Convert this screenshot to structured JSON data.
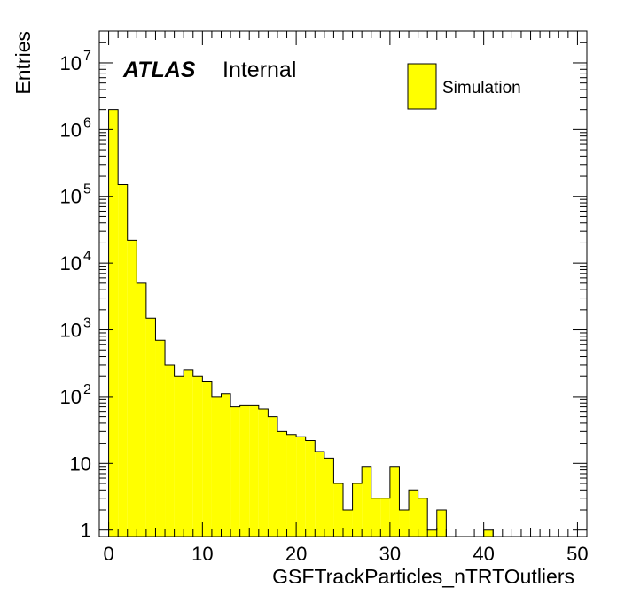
{
  "chart_data": {
    "type": "bar",
    "style": "step-filled histogram",
    "fill_color": "#ffff00",
    "line_color": "#000000",
    "xlabel": "GSFTrackParticles_nTRTOutliers",
    "ylabel": "Entries",
    "xlim": [
      -1,
      51
    ],
    "ylim": [
      0.8,
      30000000
    ],
    "y_scale": "log",
    "bin_width": 1,
    "bin_edges_start": -1,
    "values": [
      0,
      2000000,
      150000,
      22000,
      5000,
      1500,
      700,
      300,
      200,
      250,
      200,
      170,
      100,
      110,
      70,
      75,
      75,
      65,
      50,
      30,
      27,
      25,
      22,
      15,
      12,
      5,
      2,
      5,
      9,
      3,
      3,
      9,
      2,
      4,
      3,
      1,
      2,
      0,
      0,
      0,
      0,
      1,
      0,
      0,
      0,
      0,
      0,
      0,
      0,
      0,
      0,
      0
    ],
    "x_ticks": [
      0,
      10,
      20,
      30,
      40,
      50
    ],
    "x_tick_labels": [
      "0",
      "10",
      "20",
      "30",
      "40",
      "50"
    ],
    "y_ticks": [
      {
        "mantissa": "1",
        "exp": ""
      },
      {
        "mantissa": "10",
        "exp": ""
      },
      {
        "mantissa": "10",
        "exp": "2"
      },
      {
        "mantissa": "10",
        "exp": "3"
      },
      {
        "mantissa": "10",
        "exp": "4"
      },
      {
        "mantissa": "10",
        "exp": "5"
      },
      {
        "mantissa": "10",
        "exp": "6"
      },
      {
        "mantissa": "10",
        "exp": "7"
      }
    ],
    "legend": {
      "position": "top-right",
      "entries": [
        {
          "name": "Simulation",
          "color": "#ffff00"
        }
      ]
    },
    "grid": false
  },
  "atlas_label": {
    "bold": "ATLAS",
    "text": "Internal"
  }
}
